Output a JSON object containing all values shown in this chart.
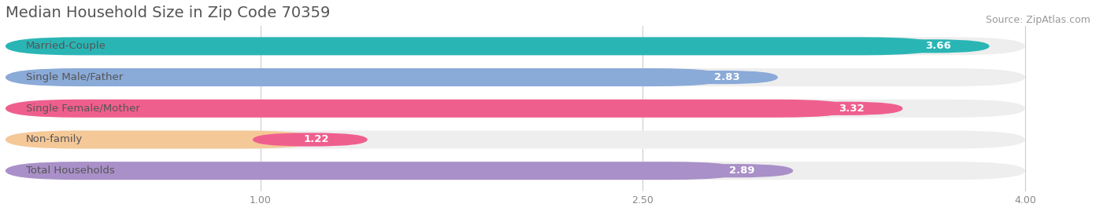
{
  "title": "Median Household Size in Zip Code 70359",
  "source": "Source: ZipAtlas.com",
  "categories": [
    "Married-Couple",
    "Single Male/Father",
    "Single Female/Mother",
    "Non-family",
    "Total Households"
  ],
  "values": [
    3.66,
    2.83,
    3.32,
    1.22,
    2.89
  ],
  "bar_colors": [
    "#2ab5b5",
    "#8aaad8",
    "#ef5f8e",
    "#f5c897",
    "#a990c8"
  ],
  "bar_bg_colors": [
    "#eeeeee",
    "#eeeeee",
    "#eeeeee",
    "#eeeeee",
    "#eeeeee"
  ],
  "value_bg_colors": [
    "#2ab5b5",
    "#8aaad8",
    "#ef5f8e",
    "#ef5f8e",
    "#a990c8"
  ],
  "xlim": [
    0.0,
    4.3
  ],
  "xmin": 0.0,
  "xmax": 4.0,
  "xticks": [
    1.0,
    2.5,
    4.0
  ],
  "value_label_color": "#ffffff",
  "title_color": "#555555",
  "title_fontsize": 14,
  "source_fontsize": 9,
  "label_fontsize": 9.5,
  "bar_height": 0.58,
  "fig_bg": "#ffffff"
}
